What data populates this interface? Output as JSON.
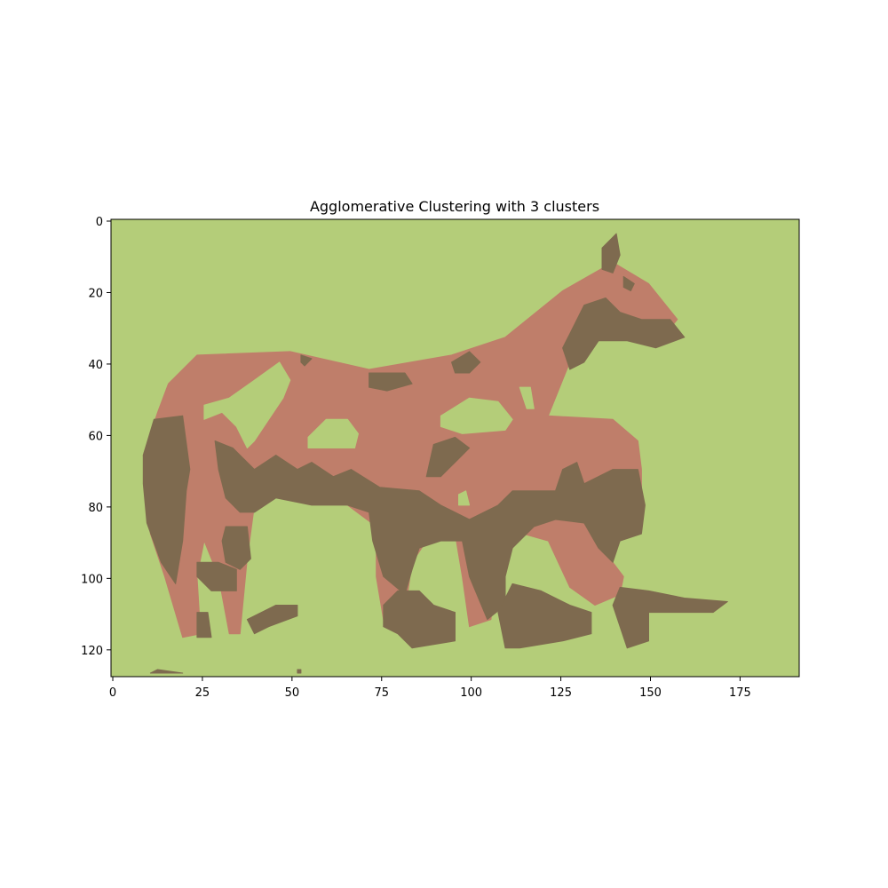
{
  "chart_data": {
    "type": "heatmap",
    "title": "Agglomerative Clustering with 3 clusters",
    "xlabel": "",
    "ylabel": "",
    "image_width": 192,
    "image_height": 128,
    "xlim": [
      -0.5,
      191.5
    ],
    "ylim": [
      127.5,
      -0.5
    ],
    "x_ticks": [
      0,
      25,
      50,
      75,
      100,
      125,
      150,
      175
    ],
    "y_ticks": [
      0,
      20,
      40,
      60,
      80,
      100,
      120
    ],
    "grid": false,
    "cluster_count": 3,
    "cluster_colors": [
      "#b4cd79",
      "#bf7e6a",
      "#7e6a4f"
    ],
    "cluster_regions": [
      {
        "cluster": 0,
        "description": "background",
        "polygons": [
          [
            [
              0,
              0
            ],
            [
              192,
              0
            ],
            [
              192,
              128
            ],
            [
              0,
              128
            ]
          ]
        ]
      },
      {
        "cluster": 1,
        "description": "horse body",
        "polygons": [
          [
            [
              13,
              54
            ],
            [
              16,
              46
            ],
            [
              24,
              38
            ],
            [
              50,
              37
            ],
            [
              72,
              42
            ],
            [
              95,
              38
            ],
            [
              110,
              33
            ],
            [
              126,
              20
            ],
            [
              140,
              12
            ],
            [
              150,
              18
            ],
            [
              158,
              28
            ],
            [
              154,
              33
            ],
            [
              140,
              30
            ],
            [
              132,
              33
            ],
            [
              128,
              40
            ],
            [
              122,
              55
            ],
            [
              140,
              56
            ],
            [
              147,
              62
            ],
            [
              148,
              70
            ],
            [
              148,
              80
            ],
            [
              144,
              84
            ],
            [
              138,
              86
            ],
            [
              140,
              96
            ],
            [
              143,
              100
            ],
            [
              142,
              105
            ],
            [
              135,
              108
            ],
            [
              128,
              103
            ],
            [
              122,
              90
            ],
            [
              115,
              88
            ],
            [
              108,
              93
            ],
            [
              106,
              112
            ],
            [
              100,
              114
            ],
            [
              98,
              100
            ],
            [
              96,
              88
            ],
            [
              88,
              90
            ],
            [
              84,
              96
            ],
            [
              82,
              110
            ],
            [
              76,
              112
            ],
            [
              74,
              100
            ],
            [
              74,
              86
            ],
            [
              66,
              80
            ],
            [
              56,
              78
            ],
            [
              46,
              74
            ],
            [
              40,
              80
            ],
            [
              38,
              95
            ],
            [
              36,
              116
            ],
            [
              33,
              116
            ],
            [
              30,
              100
            ],
            [
              26,
              90
            ],
            [
              24,
              100
            ],
            [
              25,
              116
            ],
            [
              20,
              117
            ],
            [
              15,
              100
            ],
            [
              11,
              88
            ],
            [
              9,
              66
            ]
          ]
        ]
      },
      {
        "cluster": 2,
        "description": "dark regions",
        "polygons": [
          [
            [
              9,
              66
            ],
            [
              12,
              56
            ],
            [
              20,
              55
            ],
            [
              22,
              70
            ],
            [
              21,
              76
            ],
            [
              20,
              90
            ],
            [
              18,
              102
            ],
            [
              14,
              96
            ],
            [
              10,
              85
            ],
            [
              9,
              74
            ]
          ],
          [
            [
              29,
              62
            ],
            [
              34,
              64
            ],
            [
              40,
              70
            ],
            [
              46,
              66
            ],
            [
              52,
              70
            ],
            [
              56,
              68
            ],
            [
              62,
              72
            ],
            [
              67,
              70
            ],
            [
              75,
              75
            ],
            [
              86,
              76
            ],
            [
              92,
              80
            ],
            [
              96,
              82
            ],
            [
              100,
              84
            ],
            [
              108,
              80
            ],
            [
              112,
              76
            ],
            [
              120,
              76
            ],
            [
              124,
              76
            ],
            [
              126,
              70
            ],
            [
              130,
              68
            ],
            [
              132,
              74
            ],
            [
              140,
              70
            ],
            [
              147,
              70
            ],
            [
              149,
              80
            ],
            [
              148,
              88
            ],
            [
              142,
              90
            ],
            [
              140,
              96
            ],
            [
              136,
              92
            ],
            [
              132,
              85
            ],
            [
              124,
              84
            ],
            [
              118,
              86
            ],
            [
              112,
              92
            ],
            [
              110,
              100
            ],
            [
              110,
              108
            ],
            [
              105,
              112
            ],
            [
              100,
              100
            ],
            [
              98,
              90
            ],
            [
              92,
              90
            ],
            [
              86,
              92
            ],
            [
              84,
              98
            ],
            [
              82,
              105
            ],
            [
              76,
              100
            ],
            [
              73,
              90
            ],
            [
              72,
              82
            ],
            [
              66,
              80
            ],
            [
              56,
              80
            ],
            [
              46,
              78
            ],
            [
              40,
              82
            ],
            [
              36,
              82
            ],
            [
              32,
              78
            ],
            [
              30,
              70
            ]
          ],
          [
            [
              32,
              86
            ],
            [
              38,
              86
            ],
            [
              39,
              95
            ],
            [
              36,
              98
            ],
            [
              32,
              96
            ],
            [
              31,
              90
            ]
          ],
          [
            [
              24,
              96
            ],
            [
              30,
              96
            ],
            [
              35,
              98
            ],
            [
              35,
              104
            ],
            [
              28,
              104
            ],
            [
              24,
              100
            ]
          ],
          [
            [
              112,
              102
            ],
            [
              120,
              104
            ],
            [
              128,
              108
            ],
            [
              134,
              110
            ],
            [
              134,
              116
            ],
            [
              126,
              118
            ],
            [
              114,
              120
            ],
            [
              110,
              120
            ],
            [
              108,
              110
            ]
          ],
          [
            [
              142,
              103
            ],
            [
              150,
              104
            ],
            [
              160,
              106
            ],
            [
              172,
              107
            ],
            [
              168,
              110
            ],
            [
              158,
              110
            ],
            [
              150,
              110
            ],
            [
              150,
              118
            ],
            [
              144,
              120
            ],
            [
              142,
              114
            ],
            [
              140,
              108
            ]
          ],
          [
            [
              76,
              108
            ],
            [
              80,
              104
            ],
            [
              86,
              104
            ],
            [
              90,
              108
            ],
            [
              96,
              110
            ],
            [
              96,
              118
            ],
            [
              84,
              120
            ],
            [
              80,
              116
            ],
            [
              76,
              114
            ]
          ],
          [
            [
              38,
              112
            ],
            [
              46,
              108
            ],
            [
              52,
              108
            ],
            [
              52,
              111
            ],
            [
              44,
              114
            ],
            [
              40,
              116
            ]
          ],
          [
            [
              24,
              110
            ],
            [
              27,
              110
            ],
            [
              28,
              117
            ],
            [
              24,
              117
            ]
          ],
          [
            [
              128,
              32
            ],
            [
              132,
              24
            ],
            [
              138,
              22
            ],
            [
              142,
              26
            ],
            [
              148,
              28
            ],
            [
              156,
              28
            ],
            [
              160,
              33
            ],
            [
              152,
              36
            ],
            [
              144,
              34
            ],
            [
              136,
              34
            ],
            [
              132,
              40
            ],
            [
              128,
              42
            ],
            [
              126,
              36
            ]
          ],
          [
            [
              137,
              8
            ],
            [
              141,
              4
            ],
            [
              142,
              10
            ],
            [
              140,
              15
            ],
            [
              137,
              14
            ]
          ],
          [
            [
              143,
              16
            ],
            [
              146,
              18
            ],
            [
              145,
              20
            ],
            [
              143,
              19
            ]
          ],
          [
            [
              95,
              40
            ],
            [
              100,
              37
            ],
            [
              103,
              40
            ],
            [
              100,
              43
            ],
            [
              96,
              43
            ]
          ],
          [
            [
              72,
              43
            ],
            [
              82,
              43
            ],
            [
              84,
              46
            ],
            [
              77,
              48
            ],
            [
              72,
              47
            ]
          ],
          [
            [
              90,
              63
            ],
            [
              96,
              61
            ],
            [
              100,
              64
            ],
            [
              96,
              68
            ],
            [
              92,
              72
            ],
            [
              88,
              72
            ]
          ],
          [
            [
              53,
              38
            ],
            [
              56,
              39
            ],
            [
              54,
              41
            ],
            [
              53,
              40
            ]
          ],
          [
            [
              11,
              127
            ],
            [
              13,
              126
            ],
            [
              20,
              127
            ],
            [
              11,
              127
            ]
          ],
          [
            [
              52,
              126
            ],
            [
              53,
              126
            ],
            [
              53,
              127
            ],
            [
              52,
              127
            ]
          ]
        ]
      },
      {
        "cluster": 0,
        "description": "background holes inside horse",
        "polygons": [
          [
            [
              26,
              52
            ],
            [
              33,
              50
            ],
            [
              40,
              45
            ],
            [
              47,
              40
            ],
            [
              50,
              45
            ],
            [
              48,
              50
            ],
            [
              44,
              56
            ],
            [
              40,
              62
            ],
            [
              38,
              64
            ],
            [
              35,
              58
            ],
            [
              31,
              54
            ],
            [
              26,
              56
            ]
          ],
          [
            [
              55,
              61
            ],
            [
              60,
              56
            ],
            [
              66,
              56
            ],
            [
              69,
              60
            ],
            [
              68,
              64
            ],
            [
              60,
              64
            ],
            [
              55,
              64
            ]
          ],
          [
            [
              92,
              55
            ],
            [
              100,
              50
            ],
            [
              108,
              51
            ],
            [
              112,
              56
            ],
            [
              110,
              59
            ],
            [
              98,
              60
            ],
            [
              92,
              58
            ]
          ],
          [
            [
              114,
              47
            ],
            [
              117,
              47
            ],
            [
              118,
              53
            ],
            [
              116,
              53
            ]
          ],
          [
            [
              97,
              77
            ],
            [
              99,
              76
            ],
            [
              100,
              80
            ],
            [
              97,
              80
            ]
          ]
        ]
      }
    ]
  }
}
